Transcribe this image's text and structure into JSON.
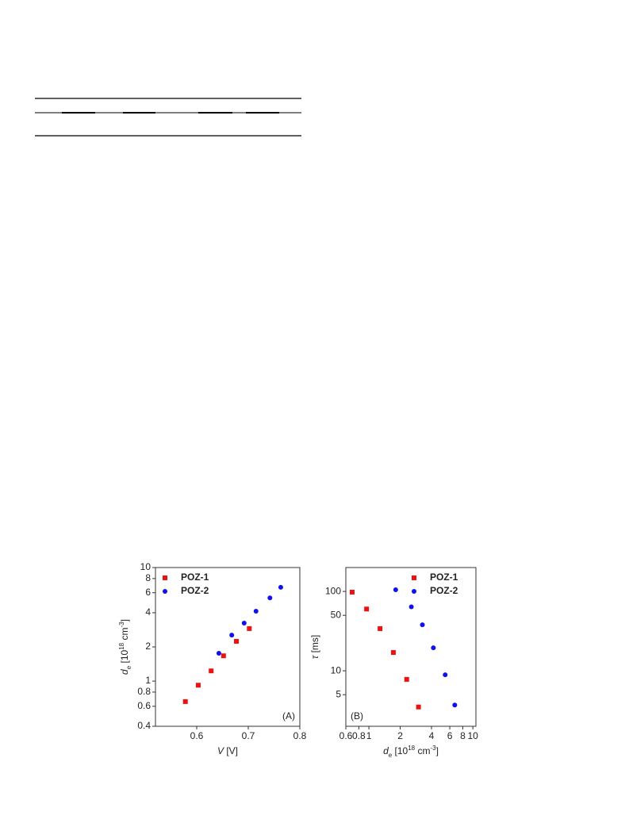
{
  "chart_data": [
    {
      "type": "scatter",
      "xscale": "linear",
      "yscale": "log",
      "xlim": [
        0.52,
        0.8
      ],
      "ylim": [
        0.4,
        10
      ],
      "xticks": [
        0.6,
        0.7,
        0.8
      ],
      "yticks": [
        0.4,
        0.6,
        0.8,
        1,
        2,
        4,
        6,
        8,
        10
      ],
      "x_label": [
        {
          "text": "V",
          "format": "italic"
        },
        {
          "text": " [V]"
        }
      ],
      "y_label": [
        {
          "text": "d",
          "format": "italic"
        },
        {
          "text": "e",
          "format": "sub"
        },
        {
          "text": " [10"
        },
        {
          "text": "18",
          "format": "sup"
        },
        {
          "text": " cm"
        },
        {
          "text": "-3",
          "format": "sup"
        },
        {
          "text": "]"
        }
      ],
      "annotation": "(A)",
      "annotation_corner": "lower right",
      "legend": "upper left",
      "series": [
        {
          "name": "POZ-1",
          "color": "#ee1111",
          "marker": "square",
          "x": [
            0.578,
            0.603,
            0.628,
            0.652,
            0.677,
            0.702
          ],
          "values": [
            0.66,
            0.92,
            1.23,
            1.67,
            2.24,
            2.9
          ]
        },
        {
          "name": "POZ-2",
          "color": "#1111ee",
          "marker": "circle",
          "x": [
            0.643,
            0.668,
            0.692,
            0.715,
            0.742,
            0.763
          ],
          "values": [
            1.76,
            2.54,
            3.24,
            4.13,
            5.4,
            6.7
          ]
        }
      ]
    },
    {
      "type": "scatter",
      "xscale": "log",
      "yscale": "log",
      "xlim": [
        0.6,
        10.7
      ],
      "ylim": [
        2,
        200
      ],
      "xticks": [
        0.6,
        0.8,
        1,
        2,
        4,
        6,
        8,
        10
      ],
      "yticks": [
        5,
        10,
        50,
        100
      ],
      "x_label": [
        {
          "text": "d",
          "format": "italic"
        },
        {
          "text": "e",
          "format": "sub"
        },
        {
          "text": " [10"
        },
        {
          "text": "18",
          "format": "sup"
        },
        {
          "text": " cm"
        },
        {
          "text": "-3",
          "format": "sup"
        },
        {
          "text": "]"
        }
      ],
      "y_label": [
        {
          "text": "τ",
          "format": "italic"
        },
        {
          "text": " [ms]"
        }
      ],
      "annotation": "(B)",
      "annotation_corner": "lower left",
      "legend": "upper right",
      "series": [
        {
          "name": "POZ-1",
          "color": "#ee1111",
          "marker": "square",
          "x": [
            0.69,
            0.95,
            1.28,
            1.72,
            2.31,
            3.0
          ],
          "values": [
            98,
            60,
            34,
            17,
            7.8,
            3.5
          ]
        },
        {
          "name": "POZ-2",
          "color": "#1111ee",
          "marker": "circle",
          "x": [
            1.81,
            2.56,
            3.27,
            4.17,
            5.42,
            6.7
          ],
          "values": [
            105,
            64,
            38,
            19.5,
            8.9,
            3.7
          ]
        }
      ]
    }
  ]
}
